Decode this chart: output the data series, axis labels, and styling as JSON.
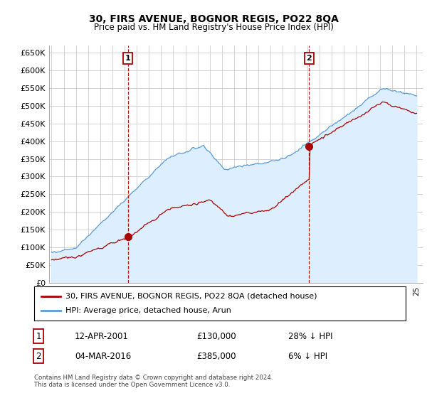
{
  "title": "30, FIRS AVENUE, BOGNOR REGIS, PO22 8QA",
  "subtitle": "Price paid vs. HM Land Registry's House Price Index (HPI)",
  "ylabel_ticks": [
    "£0",
    "£50K",
    "£100K",
    "£150K",
    "£200K",
    "£250K",
    "£300K",
    "£350K",
    "£400K",
    "£450K",
    "£500K",
    "£550K",
    "£600K",
    "£650K"
  ],
  "ytick_values": [
    0,
    50000,
    100000,
    150000,
    200000,
    250000,
    300000,
    350000,
    400000,
    450000,
    500000,
    550000,
    600000,
    650000
  ],
  "ylim": [
    0,
    670000
  ],
  "xlim_start": 1994.8,
  "xlim_end": 2025.5,
  "hpi_color": "#5b9bd5",
  "hpi_fill_color": "#ddeeff",
  "price_color": "#aa0000",
  "background_color": "#ffffff",
  "grid_color": "#cccccc",
  "sale1_year": 2001.28,
  "sale1_price": 130000,
  "sale1_label": "1",
  "sale2_year": 2016.17,
  "sale2_price": 385000,
  "sale2_label": "2",
  "legend_line1": "30, FIRS AVENUE, BOGNOR REGIS, PO22 8QA (detached house)",
  "legend_line2": "HPI: Average price, detached house, Arun",
  "annotation1_date": "12-APR-2001",
  "annotation1_price": "£130,000",
  "annotation1_hpi": "28% ↓ HPI",
  "annotation2_date": "04-MAR-2016",
  "annotation2_price": "£385,000",
  "annotation2_hpi": "6% ↓ HPI",
  "footnote": "Contains HM Land Registry data © Crown copyright and database right 2024.\nThis data is licensed under the Open Government Licence v3.0."
}
